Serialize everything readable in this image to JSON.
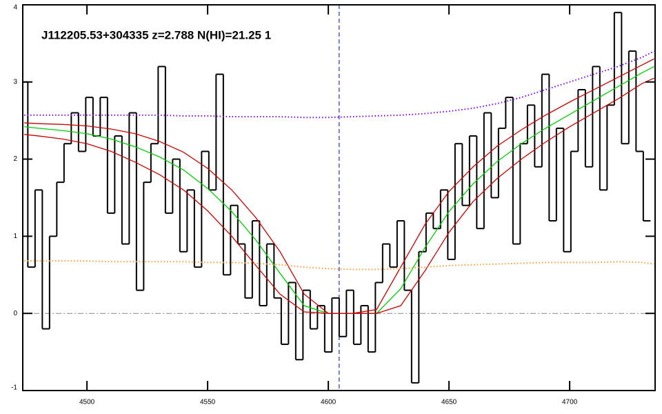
{
  "chart_data": {
    "type": "line",
    "title": "J112205.53+304335 z=2.788 N(HI)=21.25 1",
    "xlim": [
      4473.4,
      4735.4
    ],
    "ylim": [
      -1,
      4
    ],
    "xticks": [
      4500,
      4550,
      4600,
      4650,
      4700
    ],
    "yticks": [
      -1,
      0,
      1,
      2,
      3,
      4
    ],
    "marker_x": 4604.5,
    "hline": 0,
    "series": [
      {
        "color": "#000000",
        "style": "step",
        "x": [
          4474,
          4477,
          4480,
          4483,
          4486,
          4489,
          4492,
          4495,
          4498,
          4501,
          4504,
          4507,
          4510,
          4513,
          4516,
          4519,
          4522,
          4525,
          4528,
          4531,
          4534,
          4537,
          4540,
          4543,
          4546,
          4549,
          4552,
          4555,
          4558,
          4561,
          4564,
          4567,
          4570,
          4573,
          4576,
          4579,
          4582,
          4585,
          4588,
          4591,
          4594,
          4597,
          4600,
          4603,
          4606,
          4609,
          4612,
          4615,
          4618,
          4621,
          4624,
          4627,
          4630,
          4633,
          4636,
          4639,
          4642,
          4645,
          4648,
          4651,
          4654,
          4657,
          4660,
          4663,
          4666,
          4669,
          4672,
          4675,
          4678,
          4681,
          4684,
          4687,
          4690,
          4693,
          4696,
          4699,
          4702,
          4705,
          4708,
          4711,
          4714,
          4717,
          4720,
          4723,
          4726,
          4729,
          4732
        ],
        "values": [
          3.0,
          0.6,
          1.6,
          -0.2,
          1.0,
          1.7,
          2.2,
          2.6,
          2.1,
          2.8,
          2.3,
          2.8,
          1.3,
          2.3,
          0.9,
          2.6,
          0.3,
          1.7,
          2.2,
          3.2,
          1.3,
          2.0,
          0.8,
          1.6,
          0.6,
          2.1,
          1.6,
          3.1,
          0.5,
          1.4,
          0.9,
          0.2,
          1.2,
          0.1,
          0.9,
          0.2,
          -0.4,
          0.4,
          -0.6,
          0.3,
          -0.2,
          0.1,
          -0.5,
          0.2,
          -0.3,
          0.3,
          -0.4,
          0.1,
          -0.5,
          0.4,
          0.9,
          0.6,
          1.2,
          0.3,
          -0.9,
          0.8,
          1.3,
          1.1,
          1.6,
          0.7,
          2.2,
          1.4,
          2.3,
          1.1,
          2.6,
          1.5,
          2.4,
          2.8,
          0.9,
          2.2,
          2.7,
          1.9,
          3.1,
          1.2,
          2.4,
          0.8,
          2.1,
          2.9,
          1.9,
          3.2,
          1.6,
          2.7,
          3.9,
          2.2,
          3.4,
          2.1,
          1.2
        ]
      },
      {
        "color": "#00cc00",
        "style": "solid",
        "x": [
          4474,
          4480,
          4490,
          4500,
          4510,
          4520,
          4530,
          4540,
          4550,
          4560,
          4570,
          4580,
          4590,
          4600,
          4610,
          4620,
          4630,
          4640,
          4650,
          4660,
          4670,
          4680,
          4690,
          4700,
          4710,
          4720,
          4730,
          4735
        ],
        "values": [
          2.42,
          2.4,
          2.37,
          2.33,
          2.26,
          2.16,
          2.03,
          1.86,
          1.62,
          1.32,
          0.95,
          0.52,
          0.1,
          0,
          0,
          0,
          0.32,
          0.85,
          1.32,
          1.68,
          1.97,
          2.2,
          2.4,
          2.58,
          2.76,
          2.94,
          3.12,
          3.2
        ]
      },
      {
        "color": "#cc0000",
        "style": "solid",
        "x": [
          4474,
          4480,
          4490,
          4500,
          4510,
          4520,
          4530,
          4540,
          4550,
          4560,
          4570,
          4580,
          4590,
          4600,
          4610,
          4620,
          4630,
          4640,
          4650,
          4660,
          4670,
          4680,
          4690,
          4700,
          4710,
          4720,
          4730,
          4735
        ],
        "values": [
          2.47,
          2.46,
          2.45,
          2.43,
          2.39,
          2.33,
          2.23,
          2.09,
          1.88,
          1.6,
          1.24,
          0.8,
          0.25,
          0,
          0,
          0.05,
          0.6,
          1.15,
          1.58,
          1.9,
          2.17,
          2.38,
          2.57,
          2.74,
          2.9,
          3.06,
          3.22,
          3.3
        ]
      },
      {
        "color": "#cc0000",
        "style": "solid",
        "x": [
          4474,
          4480,
          4490,
          4500,
          4510,
          4520,
          4530,
          4540,
          4550,
          4560,
          4570,
          4580,
          4590,
          4600,
          4610,
          4620,
          4630,
          4640,
          4650,
          4660,
          4670,
          4680,
          4690,
          4700,
          4710,
          4720,
          4730,
          4735
        ],
        "values": [
          2.32,
          2.3,
          2.26,
          2.2,
          2.1,
          1.96,
          1.8,
          1.6,
          1.33,
          1.0,
          0.62,
          0.25,
          0.02,
          0,
          0,
          0,
          0.1,
          0.55,
          1.05,
          1.45,
          1.75,
          2.0,
          2.22,
          2.42,
          2.6,
          2.78,
          2.98,
          3.05
        ]
      },
      {
        "color": "#8000ff",
        "style": "dotted",
        "x": [
          4474,
          4480,
          4490,
          4500,
          4510,
          4520,
          4530,
          4540,
          4550,
          4560,
          4570,
          4580,
          4590,
          4600,
          4610,
          4620,
          4630,
          4640,
          4650,
          4660,
          4670,
          4680,
          4690,
          4700,
          4710,
          4720,
          4730,
          4735
        ],
        "values": [
          2.57,
          2.57,
          2.57,
          2.57,
          2.57,
          2.57,
          2.57,
          2.56,
          2.56,
          2.55,
          2.55,
          2.55,
          2.54,
          2.54,
          2.55,
          2.56,
          2.57,
          2.59,
          2.62,
          2.66,
          2.72,
          2.8,
          2.9,
          3.0,
          3.1,
          3.2,
          3.32,
          3.4
        ]
      },
      {
        "color": "#ff9933",
        "style": "dotted",
        "x": [
          4474,
          4480,
          4490,
          4500,
          4510,
          4520,
          4530,
          4540,
          4550,
          4560,
          4570,
          4580,
          4590,
          4600,
          4610,
          4620,
          4630,
          4640,
          4650,
          4660,
          4670,
          4680,
          4690,
          4700,
          4710,
          4720,
          4730,
          4735
        ],
        "values": [
          0.68,
          0.68,
          0.68,
          0.68,
          0.67,
          0.67,
          0.67,
          0.67,
          0.66,
          0.66,
          0.65,
          0.63,
          0.6,
          0.58,
          0.57,
          0.57,
          0.58,
          0.6,
          0.62,
          0.63,
          0.64,
          0.65,
          0.66,
          0.66,
          0.66,
          0.67,
          0.66,
          0.64
        ]
      }
    ]
  }
}
